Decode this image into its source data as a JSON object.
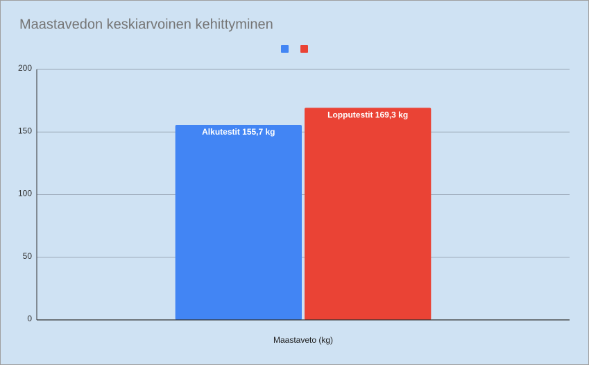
{
  "chart_data": {
    "type": "bar",
    "title": "Maastavedon keskiarvoinen kehittyminen",
    "categories": [
      "Maastaveto (kg)"
    ],
    "series": [
      {
        "color": "#4285f4",
        "values": [
          155.7
        ],
        "value_labels": [
          "Alkutestit 155,7 kg"
        ]
      },
      {
        "color": "#ea4335",
        "values": [
          169.3
        ],
        "value_labels": [
          "Lopputestit 169,3 kg"
        ]
      }
    ],
    "ylim": [
      0,
      200
    ],
    "yticks": [
      0,
      50,
      100,
      150,
      200
    ],
    "grid": true
  }
}
